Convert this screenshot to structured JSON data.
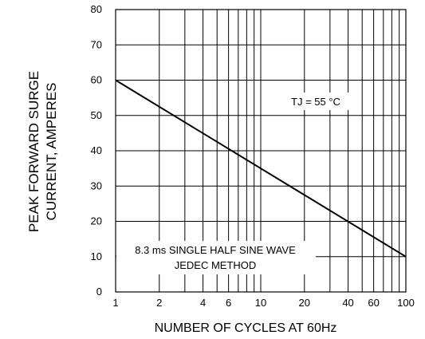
{
  "chart_data": {
    "type": "line",
    "x_scale": "log",
    "x": [
      1,
      100
    ],
    "y": [
      60,
      10
    ],
    "xlim": [
      1,
      100
    ],
    "ylim": [
      0,
      80
    ],
    "x_ticks": [
      1,
      2,
      4,
      6,
      10,
      20,
      40,
      60,
      100
    ],
    "x_tick_labels": [
      "1",
      "2",
      "4",
      "6",
      "10",
      "20",
      "40",
      "60",
      "100"
    ],
    "y_ticks": [
      0,
      10,
      20,
      30,
      40,
      50,
      60,
      70,
      80
    ],
    "y_tick_labels": [
      "0",
      "10",
      "20",
      "30",
      "40",
      "50",
      "60",
      "70",
      "80"
    ],
    "x_minor_grid": [
      3,
      5,
      7,
      8,
      9,
      30,
      50,
      70,
      80,
      90
    ],
    "xlabel": "NUMBER OF CYCLES AT 60Hz",
    "ylabel_lines": [
      "PEAK FORWARD SURGE",
      "CURRENT, AMPERES"
    ],
    "annotations": {
      "temperature": "TJ = 55 °C",
      "method_line1": "8.3 ms SINGLE HALF SINE WAVE",
      "method_line2": "JEDEC METHOD"
    },
    "grid": true,
    "line_color": "#000000"
  }
}
